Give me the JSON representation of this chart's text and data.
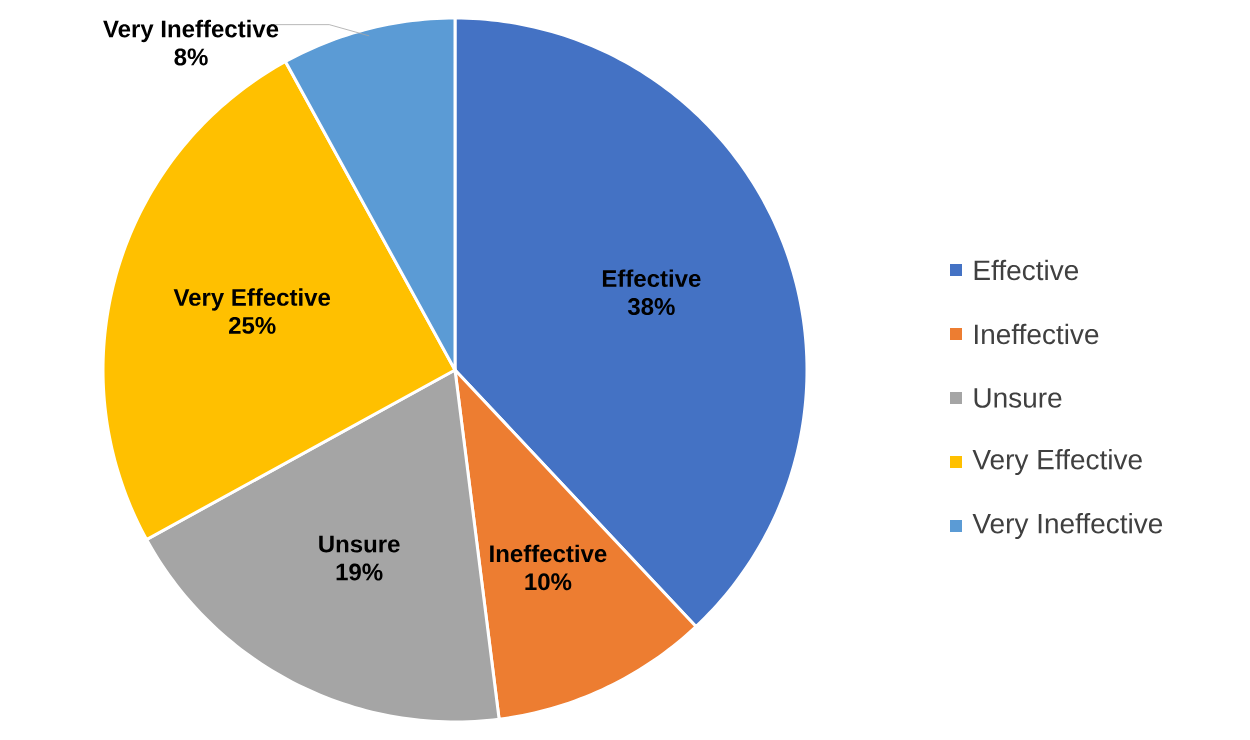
{
  "chart_data": {
    "type": "pie",
    "categories": [
      "Effective",
      "Ineffective",
      "Unsure",
      "Very Effective",
      "Very Ineffective"
    ],
    "values": [
      38,
      10,
      19,
      25,
      8
    ],
    "colors": [
      "#4472c4",
      "#ed7d31",
      "#a5a5a5",
      "#ffc000",
      "#5b9bd5"
    ],
    "value_labels": [
      "38%",
      "10%",
      "19%",
      "25%",
      "8%"
    ],
    "legend": "right"
  }
}
